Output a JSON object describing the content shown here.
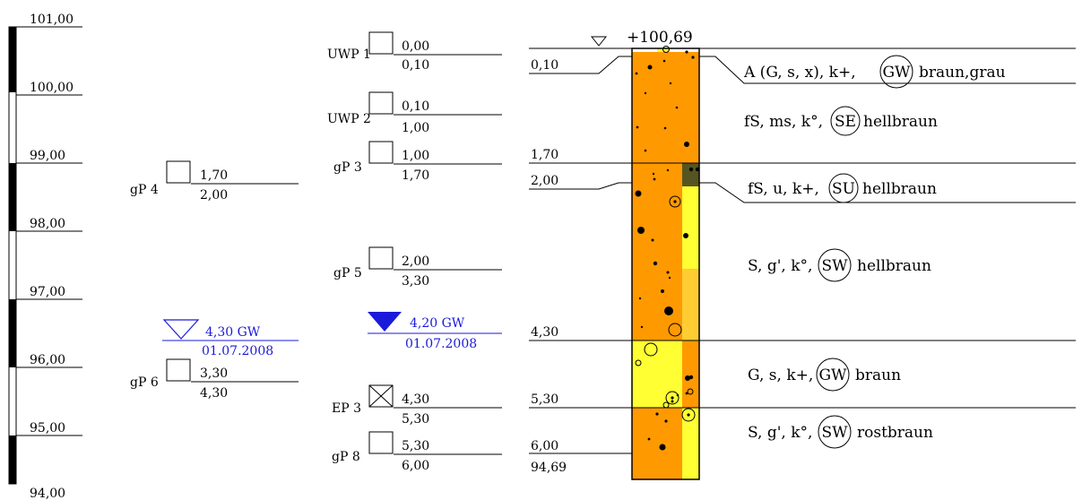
{
  "scale": {
    "labels": [
      "101,00",
      "100,00",
      "99,00",
      "98,00",
      "97,00",
      "96,00",
      "95,00",
      "94,00"
    ]
  },
  "samples_left": [
    {
      "name": "gP 4",
      "top": "1,70",
      "bottom": "2,00",
      "crossed": false
    },
    {
      "name": "gP 6",
      "top": "3,30",
      "bottom": "4,30",
      "crossed": false
    }
  ],
  "groundwater_left": {
    "depth": "4,30 GW",
    "date": "01.07.2008",
    "filled": false,
    "color": "#1a1adb"
  },
  "samples_mid": [
    {
      "name": "UWP 1",
      "top": "0,00",
      "bottom": "0,10",
      "crossed": false
    },
    {
      "name": "UWP 2",
      "top": "0,10",
      "bottom": "1,00",
      "crossed": false
    },
    {
      "name": "gP 3",
      "top": "1,00",
      "bottom": "1,70",
      "crossed": false
    },
    {
      "name": "gP 5",
      "top": "2,00",
      "bottom": "3,30",
      "crossed": false
    },
    {
      "name": "EP 3",
      "top": "4,30",
      "bottom": "5,30",
      "crossed": true
    },
    {
      "name": "gP 8",
      "top": "5,30",
      "bottom": "6,00",
      "crossed": false
    }
  ],
  "groundwater_mid": {
    "depth": "4,20 GW",
    "date": "01.07.2008",
    "filled": true,
    "color": "#1a1adb"
  },
  "profile": {
    "surface_elevation": "+100,69",
    "bottom_elevation": "94,69",
    "colors": {
      "orange": "#ff9900",
      "yellow": "#ffff33",
      "dark": "#555522"
    }
  },
  "layers": [
    {
      "depth": "0,10",
      "soil": "A (G, s, x), k+,",
      "group": "GW",
      "rest": "braun,grau"
    },
    {
      "depth": "1,70",
      "soil": "fS, ms, k°,",
      "group": "SE",
      "rest": "hellbraun"
    },
    {
      "depth": "2,00",
      "soil": "fS, u, k+,",
      "group": "SU",
      "rest": "hellbraun"
    },
    {
      "depth": "4,30",
      "soil": "S, g', k°,",
      "group": "SW",
      "rest": "hellbraun"
    },
    {
      "depth": "5,30",
      "soil": "G, s, k+,",
      "group": "GW",
      "rest": "braun"
    },
    {
      "depth": "6,00",
      "soil": "S, g', k°,",
      "group": "SW",
      "rest": "rostbraun"
    }
  ]
}
